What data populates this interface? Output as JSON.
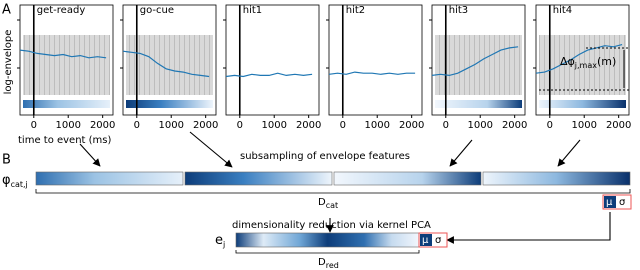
{
  "figure": {
    "panel_a_label": "A",
    "panel_b_label": "B",
    "y_axis_label": "log-envelope",
    "x_axis": {
      "label": "time to event (ms)",
      "xlim": [
        -400,
        2300
      ],
      "xticks": [
        0,
        1000,
        2000
      ],
      "event_time": 0
    },
    "ylim": [
      0,
      10
    ],
    "x": [
      -400,
      -150,
      100,
      350,
      600,
      850,
      1100,
      1350,
      1600,
      1850,
      2100
    ],
    "panels": [
      {
        "title": "get-ready",
        "shaded": true,
        "values": [
          5.9,
          5.8,
          5.6,
          5.5,
          5.4,
          5.5,
          5.3,
          5.4,
          5.2,
          5.3,
          5.2
        ]
      },
      {
        "title": "go-cue",
        "shaded": true,
        "values": [
          5.8,
          5.7,
          5.6,
          5.3,
          4.7,
          4.2,
          4.0,
          3.9,
          3.7,
          3.6,
          3.5
        ]
      },
      {
        "title": "hit1",
        "shaded": false,
        "values": [
          3.5,
          3.6,
          3.5,
          3.7,
          3.6,
          3.6,
          3.8,
          3.6,
          3.7,
          3.6,
          3.7
        ]
      },
      {
        "title": "hit2",
        "shaded": false,
        "values": [
          3.7,
          3.8,
          3.7,
          3.9,
          3.8,
          3.8,
          3.7,
          3.8,
          3.7,
          3.8,
          3.8
        ]
      },
      {
        "title": "hit3",
        "shaded": true,
        "values": [
          3.6,
          3.7,
          3.6,
          3.8,
          4.2,
          4.6,
          5.1,
          5.5,
          5.9,
          6.1,
          6.2
        ]
      },
      {
        "title": "hit4",
        "shaded": true,
        "values": [
          3.8,
          3.9,
          4.2,
          4.6,
          5.0,
          5.5,
          5.9,
          6.1,
          6.3,
          6.2,
          6.4
        ]
      }
    ],
    "delta_label": {
      "main": "Δφ",
      "sub": "j,max",
      "tail": "(m)"
    },
    "subsampling_label": "subsampling of envelope features",
    "phi_label": {
      "main": "φ",
      "sub": "cat,j"
    },
    "dcat_label": {
      "main": "D",
      "sub": "cat"
    },
    "mu": "μ",
    "sigma": "σ",
    "reduction_label": "dimensionality reduction via kernel PCA",
    "e_label": {
      "main": "e",
      "sub": "j"
    },
    "dred_label": {
      "main": "D",
      "sub": "red"
    }
  }
}
